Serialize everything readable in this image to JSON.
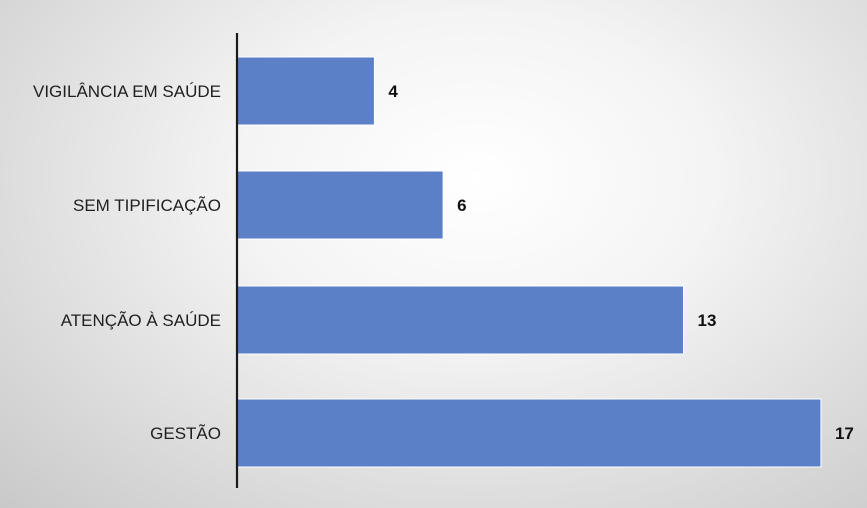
{
  "chart_data": {
    "type": "bar",
    "orientation": "horizontal",
    "categories": [
      "VIGILÂNCIA EM SAÚDE",
      "SEM TIPIFICAÇÃO",
      "ATENÇÃO À SAÚDE",
      "GESTÃO"
    ],
    "values": [
      4,
      6,
      13,
      17
    ],
    "xlim": [
      0,
      17
    ],
    "bar_color": "#5b80c8",
    "bar_border_color": "#ffffff",
    "axis_color": "#1a1a1a",
    "grid": false,
    "legend": "none",
    "data_labels": true
  }
}
